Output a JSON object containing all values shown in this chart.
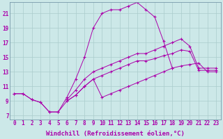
{
  "bg_color": "#cce8e8",
  "grid_color": "#aacccc",
  "line_color": "#aa00aa",
  "marker": "+",
  "xlim": [
    -0.5,
    23.5
  ],
  "ylim": [
    6.5,
    22.5
  ],
  "xlabel": "Windchill (Refroidissement éolien,°C)",
  "xlabel_fontsize": 6.5,
  "xtick_fontsize": 5.5,
  "ytick_fontsize": 5.5,
  "xticks": [
    0,
    1,
    2,
    3,
    4,
    5,
    6,
    7,
    8,
    9,
    10,
    11,
    12,
    13,
    14,
    15,
    16,
    17,
    18,
    19,
    20,
    21,
    22,
    23
  ],
  "yticks": [
    7,
    9,
    11,
    13,
    15,
    17,
    19,
    21
  ],
  "lines": [
    {
      "x": [
        0,
        1,
        2,
        3,
        4,
        5,
        6,
        7,
        8,
        9,
        10,
        11,
        12,
        13,
        14,
        15,
        16,
        17,
        18
      ],
      "y": [
        10,
        10,
        9.2,
        8.8,
        7.5,
        7.5,
        9.5,
        12,
        15,
        19,
        21,
        21.5,
        21.5,
        22,
        22.5,
        21.5,
        20.5,
        17.2,
        13.5
      ]
    },
    {
      "x": [
        6,
        7,
        8,
        9,
        10,
        11,
        12,
        13,
        14,
        15,
        16,
        17,
        18,
        19,
        20,
        21,
        22,
        23
      ],
      "y": [
        9.2,
        10.5,
        12,
        13,
        13.5,
        14,
        14.5,
        15,
        15.5,
        15.5,
        16,
        16.5,
        17,
        17.5,
        16.5,
        13.5,
        13.5,
        13.5
      ]
    },
    {
      "x": [
        6,
        7,
        8,
        9,
        10,
        11,
        12,
        13,
        14,
        15,
        16,
        17,
        18,
        19,
        20,
        21,
        22,
        23
      ],
      "y": [
        9.0,
        9.8,
        11,
        12,
        12.5,
        13,
        13.5,
        14,
        14.5,
        14.5,
        14.8,
        15.2,
        15.5,
        16,
        15.8,
        13.2,
        13.2,
        13.2
      ]
    },
    {
      "x": [
        0,
        1,
        2,
        3,
        4,
        5,
        6,
        7,
        8,
        9,
        10,
        11,
        12,
        13,
        14,
        15,
        16,
        17,
        18,
        19,
        20,
        21,
        22,
        23
      ],
      "y": [
        10,
        10,
        9.2,
        8.8,
        7.5,
        7.5,
        9.0,
        9.8,
        11,
        12,
        9.5,
        10,
        10.5,
        11,
        11.5,
        12,
        12.5,
        13,
        13.5,
        13.8,
        14,
        14.2,
        13,
        13
      ]
    }
  ]
}
